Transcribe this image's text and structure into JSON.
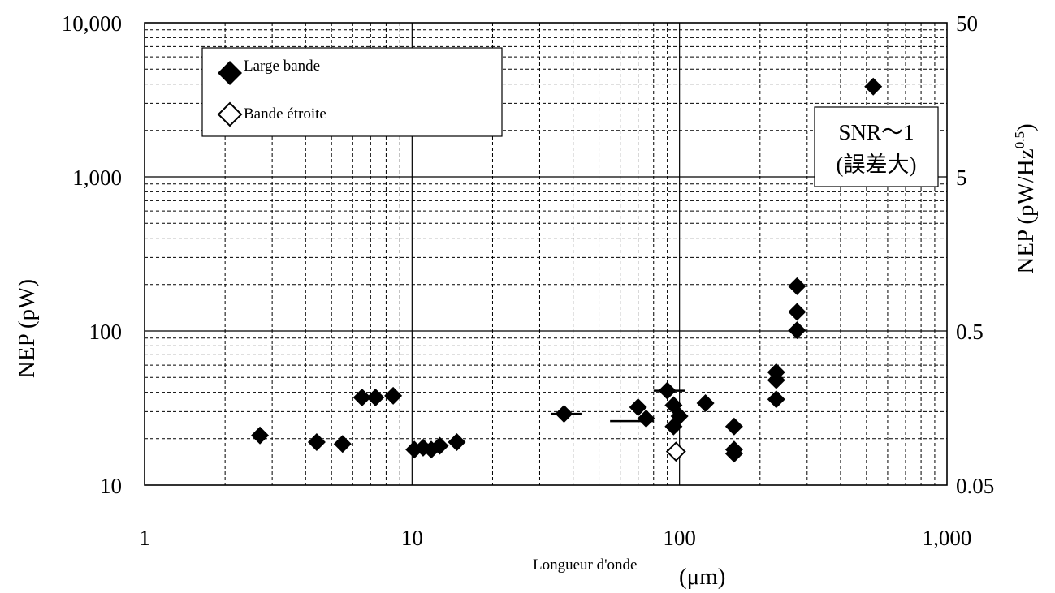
{
  "chart_data": {
    "type": "scatter",
    "title": "",
    "xlabel": "Longueur d'onde",
    "xunit": "(μm)",
    "ylabel": "NEP (pW)",
    "ylabel_right": "NEP (pW/Hz",
    "ylabel_right_exponent": "0.5",
    "ylabel_right_close": ")",
    "x_scale": "log",
    "y_scale": "log",
    "xlim": [
      1,
      1000
    ],
    "ylim": [
      10,
      10000
    ],
    "y_right_lim": [
      0.05,
      50
    ],
    "x_ticks": [
      "1",
      "10",
      "100",
      "1,000"
    ],
    "y_ticks": [
      "10",
      "100",
      "1,000",
      "10,000"
    ],
    "y_right_ticks": [
      "0.05",
      "0.5",
      "5",
      "50"
    ],
    "grid": true,
    "legend_position": "top-left",
    "series": [
      {
        "name": "Large bande",
        "marker": "filled-diamond",
        "points": [
          {
            "x": 2.7,
            "y": 21
          },
          {
            "x": 4.4,
            "y": 19
          },
          {
            "x": 5.5,
            "y": 18.5
          },
          {
            "x": 6.5,
            "y": 37
          },
          {
            "x": 7.3,
            "y": 37
          },
          {
            "x": 8.5,
            "y": 38
          },
          {
            "x": 10.2,
            "y": 17
          },
          {
            "x": 11.0,
            "y": 17.5
          },
          {
            "x": 11.8,
            "y": 17
          },
          {
            "x": 12.7,
            "y": 18
          },
          {
            "x": 14.7,
            "y": 19
          },
          {
            "x": 37,
            "y": 29
          },
          {
            "x": 70,
            "y": 32
          },
          {
            "x": 75,
            "y": 27
          },
          {
            "x": 90,
            "y": 41
          },
          {
            "x": 95,
            "y": 33
          },
          {
            "x": 95,
            "y": 24
          },
          {
            "x": 100,
            "y": 28
          },
          {
            "x": 125,
            "y": 34
          },
          {
            "x": 160,
            "y": 24
          },
          {
            "x": 160,
            "y": 17
          },
          {
            "x": 160,
            "y": 16
          },
          {
            "x": 230,
            "y": 54
          },
          {
            "x": 230,
            "y": 48
          },
          {
            "x": 230,
            "y": 36
          },
          {
            "x": 275,
            "y": 195
          },
          {
            "x": 275,
            "y": 133
          },
          {
            "x": 275,
            "y": 101
          },
          {
            "x": 530,
            "y": 3850
          }
        ]
      },
      {
        "name": "Bande étroite",
        "marker": "open-diamond",
        "points": [
          {
            "x": 97,
            "y": 16.5
          }
        ]
      }
    ],
    "error_bars": [
      {
        "y": 29,
        "x_from": 33,
        "x_to": 43
      },
      {
        "y": 26,
        "x_from": 55,
        "x_to": 80
      },
      {
        "y": 41,
        "x_from": 80,
        "x_to": 105
      }
    ],
    "annotation": {
      "line1": "SNR～1",
      "line2": "(誤差大)"
    }
  }
}
